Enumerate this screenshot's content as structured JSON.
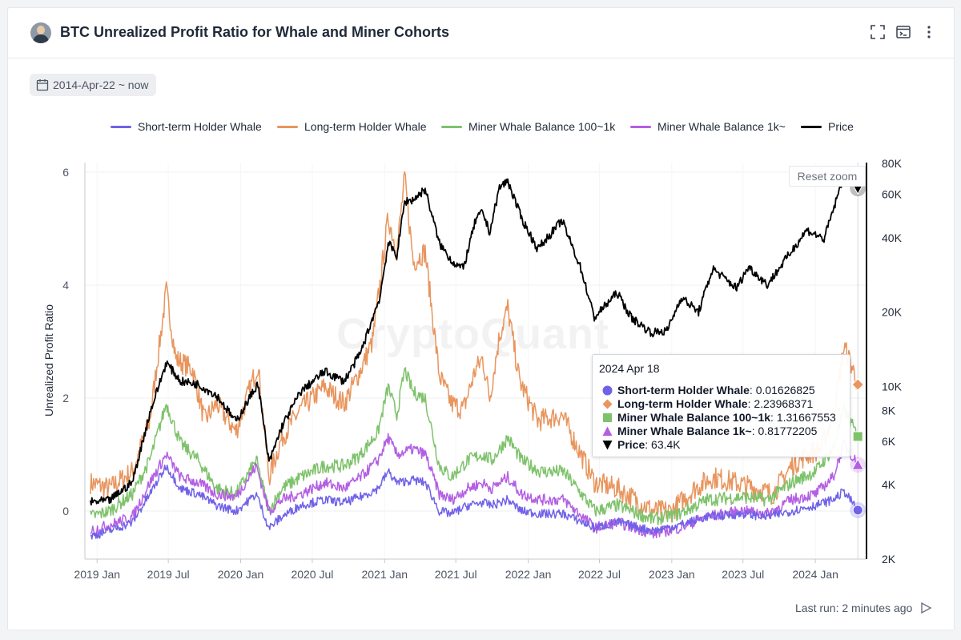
{
  "header": {
    "title": "BTC Unrealized Profit Ratio for Whale and Miner Cohorts",
    "icons": [
      "expand-icon",
      "terminal-icon",
      "more-vert-icon"
    ]
  },
  "date_range": "2014-Apr-22 ~ now",
  "reset_zoom_label": "Reset zoom",
  "watermark": "CryptoQuant",
  "footer": {
    "last_run": "Last run: 2 minutes ago"
  },
  "colors": {
    "sth": "#7062e8",
    "lth": "#e8955e",
    "mw100": "#7ec26b",
    "mw1k": "#b35fe3",
    "price": "#000000"
  },
  "legend": [
    {
      "key": "sth",
      "label": "Short-term Holder Whale"
    },
    {
      "key": "lth",
      "label": "Long-term Holder Whale"
    },
    {
      "key": "mw100",
      "label": "Miner Whale Balance 100~1k"
    },
    {
      "key": "mw1k",
      "label": "Miner Whale Balance 1k~"
    },
    {
      "key": "price",
      "label": "Price"
    }
  ],
  "tooltip": {
    "date": "2024 Apr 18",
    "rows": [
      {
        "label": "Short-term Holder Whale",
        "value": "0.01626825",
        "marker": "circle",
        "color": "#7062e8"
      },
      {
        "label": "Long-term Holder Whale",
        "value": "2.23968371",
        "marker": "diamond",
        "color": "#e8955e"
      },
      {
        "label": "Miner Whale Balance 100~1k",
        "value": "1.31667553",
        "marker": "square",
        "color": "#7ec26b"
      },
      {
        "label": "Miner Whale Balance 1k~",
        "value": "0.81772205",
        "marker": "triangle",
        "color": "#b35fe3"
      },
      {
        "label": "Price",
        "value": "63.4K",
        "marker": "triangle-down",
        "color": "#000000"
      }
    ]
  },
  "chart_data": {
    "type": "line",
    "title": "BTC Unrealized Profit Ratio for Whale and Miner Cohorts",
    "ylabel": "Unrealized Profit Ratio",
    "y_ticks": [
      0,
      2,
      4,
      6
    ],
    "y2_tick_labels": [
      "2K",
      "4K",
      "6K",
      "8K",
      "10K",
      "20K",
      "40K",
      "60K",
      "80K"
    ],
    "y2_tick_values": [
      2000,
      4000,
      6000,
      8000,
      10000,
      20000,
      40000,
      60000,
      80000
    ],
    "y2_scale": "log",
    "x_ticks": [
      "2019 Jan",
      "2019 Jul",
      "2020 Jan",
      "2020 Jul",
      "2021 Jan",
      "2021 Jul",
      "2022 Jan",
      "2022 Jul",
      "2023 Jan",
      "2023 Jul",
      "2024 Jan"
    ],
    "x_tick_dates": [
      "2019-01-01",
      "2019-07-01",
      "2020-01-01",
      "2020-07-01",
      "2021-01-01",
      "2021-07-01",
      "2022-01-01",
      "2022-07-01",
      "2023-01-01",
      "2023-07-01",
      "2024-01-01"
    ],
    "grid": true,
    "legend_position": "top",
    "series": [
      {
        "name": "Short-term Holder Whale",
        "axis": "left",
        "color": "#7062e8",
        "points": [
          [
            "2018-12-15",
            -0.45
          ],
          [
            "2019-02-01",
            -0.35
          ],
          [
            "2019-04-01",
            -0.2
          ],
          [
            "2019-05-15",
            0.3
          ],
          [
            "2019-06-26",
            0.8
          ],
          [
            "2019-08-01",
            0.4
          ],
          [
            "2019-09-15",
            0.3
          ],
          [
            "2019-11-01",
            0.1
          ],
          [
            "2019-12-20",
            0.0
          ],
          [
            "2020-02-10",
            0.3
          ],
          [
            "2020-03-13",
            -0.3
          ],
          [
            "2020-04-15",
            -0.1
          ],
          [
            "2020-06-01",
            0.1
          ],
          [
            "2020-08-01",
            0.2
          ],
          [
            "2020-09-20",
            0.15
          ],
          [
            "2020-11-01",
            0.25
          ],
          [
            "2020-12-15",
            0.4
          ],
          [
            "2021-01-10",
            0.7
          ],
          [
            "2021-02-01",
            0.5
          ],
          [
            "2021-03-15",
            0.55
          ],
          [
            "2021-04-15",
            0.5
          ],
          [
            "2021-05-20",
            0.0
          ],
          [
            "2021-06-20",
            -0.05
          ],
          [
            "2021-08-01",
            0.1
          ],
          [
            "2021-09-05",
            0.15
          ],
          [
            "2021-10-01",
            0.1
          ],
          [
            "2021-11-10",
            0.2
          ],
          [
            "2021-12-15",
            0.0
          ],
          [
            "2022-02-01",
            -0.05
          ],
          [
            "2022-04-01",
            -0.05
          ],
          [
            "2022-06-20",
            -0.3
          ],
          [
            "2022-08-15",
            -0.2
          ],
          [
            "2022-11-15",
            -0.35
          ],
          [
            "2023-01-20",
            -0.25
          ],
          [
            "2023-04-01",
            -0.1
          ],
          [
            "2023-07-01",
            -0.05
          ],
          [
            "2023-09-01",
            -0.1
          ],
          [
            "2023-11-01",
            0.0
          ],
          [
            "2024-01-01",
            0.1
          ],
          [
            "2024-02-15",
            0.2
          ],
          [
            "2024-03-14",
            0.35
          ],
          [
            "2024-04-18",
            0.016
          ]
        ]
      },
      {
        "name": "Long-term Holder Whale",
        "axis": "left",
        "color": "#e8955e",
        "points": [
          [
            "2018-12-15",
            0.5
          ],
          [
            "2019-02-01",
            0.4
          ],
          [
            "2019-04-01",
            0.7
          ],
          [
            "2019-05-15",
            1.6
          ],
          [
            "2019-06-26",
            3.9
          ],
          [
            "2019-07-20",
            2.7
          ],
          [
            "2019-09-01",
            2.5
          ],
          [
            "2019-10-01",
            1.6
          ],
          [
            "2019-11-01",
            1.9
          ],
          [
            "2019-12-20",
            1.4
          ],
          [
            "2020-02-14",
            2.6
          ],
          [
            "2020-03-13",
            0.6
          ],
          [
            "2020-04-15",
            1.3
          ],
          [
            "2020-06-01",
            1.8
          ],
          [
            "2020-08-01",
            2.2
          ],
          [
            "2020-09-20",
            1.9
          ],
          [
            "2020-11-01",
            2.5
          ],
          [
            "2020-12-01",
            3.0
          ],
          [
            "2020-12-20",
            4.0
          ],
          [
            "2021-01-10",
            5.2
          ],
          [
            "2021-02-01",
            4.6
          ],
          [
            "2021-02-21",
            5.9
          ],
          [
            "2021-03-15",
            4.4
          ],
          [
            "2021-04-14",
            4.6
          ],
          [
            "2021-05-20",
            2.4
          ],
          [
            "2021-06-20",
            1.9
          ],
          [
            "2021-07-20",
            1.8
          ],
          [
            "2021-08-20",
            2.5
          ],
          [
            "2021-09-07",
            2.7
          ],
          [
            "2021-09-25",
            2.0
          ],
          [
            "2021-10-20",
            3.1
          ],
          [
            "2021-11-10",
            3.6
          ],
          [
            "2021-12-10",
            2.3
          ],
          [
            "2022-01-25",
            1.6
          ],
          [
            "2022-03-28",
            1.7
          ],
          [
            "2022-05-15",
            1.0
          ],
          [
            "2022-06-20",
            0.5
          ],
          [
            "2022-08-15",
            0.4
          ],
          [
            "2022-11-15",
            0.0
          ],
          [
            "2023-01-01",
            0.0
          ],
          [
            "2023-03-01",
            0.4
          ],
          [
            "2023-04-15",
            0.6
          ],
          [
            "2023-06-15",
            0.5
          ],
          [
            "2023-08-01",
            0.4
          ],
          [
            "2023-09-15",
            0.3
          ],
          [
            "2023-11-01",
            0.8
          ],
          [
            "2023-12-10",
            1.0
          ],
          [
            "2024-01-15",
            1.1
          ],
          [
            "2024-02-15",
            1.7
          ],
          [
            "2024-03-14",
            2.9
          ],
          [
            "2024-04-01",
            2.6
          ],
          [
            "2024-04-18",
            2.24
          ]
        ]
      },
      {
        "name": "Miner Whale Balance 100~1k",
        "axis": "left",
        "color": "#7ec26b",
        "points": [
          [
            "2018-12-15",
            -0.1
          ],
          [
            "2019-02-01",
            0.0
          ],
          [
            "2019-04-01",
            0.3
          ],
          [
            "2019-05-15",
            0.9
          ],
          [
            "2019-06-26",
            1.9
          ],
          [
            "2019-08-01",
            1.2
          ],
          [
            "2019-09-15",
            0.9
          ],
          [
            "2019-11-01",
            0.4
          ],
          [
            "2019-12-20",
            0.3
          ],
          [
            "2020-02-10",
            0.9
          ],
          [
            "2020-03-13",
            0.0
          ],
          [
            "2020-04-15",
            0.4
          ],
          [
            "2020-06-01",
            0.6
          ],
          [
            "2020-08-01",
            0.8
          ],
          [
            "2020-09-20",
            0.8
          ],
          [
            "2020-11-01",
            1.0
          ],
          [
            "2020-12-15",
            1.4
          ],
          [
            "2021-01-10",
            2.2
          ],
          [
            "2021-02-01",
            1.7
          ],
          [
            "2021-02-21",
            2.5
          ],
          [
            "2021-03-15",
            2.1
          ],
          [
            "2021-04-14",
            2.0
          ],
          [
            "2021-05-20",
            0.8
          ],
          [
            "2021-06-20",
            0.6
          ],
          [
            "2021-08-01",
            0.9
          ],
          [
            "2021-09-05",
            1.0
          ],
          [
            "2021-10-01",
            0.9
          ],
          [
            "2021-11-10",
            1.3
          ],
          [
            "2021-12-15",
            0.9
          ],
          [
            "2022-02-01",
            0.7
          ],
          [
            "2022-04-01",
            0.7
          ],
          [
            "2022-06-20",
            0.0
          ],
          [
            "2022-08-15",
            0.1
          ],
          [
            "2022-11-15",
            -0.15
          ],
          [
            "2023-01-20",
            -0.05
          ],
          [
            "2023-04-01",
            0.2
          ],
          [
            "2023-07-01",
            0.25
          ],
          [
            "2023-09-01",
            0.2
          ],
          [
            "2023-11-01",
            0.5
          ],
          [
            "2024-01-01",
            0.7
          ],
          [
            "2024-02-15",
            1.1
          ],
          [
            "2024-03-14",
            1.8
          ],
          [
            "2024-04-18",
            1.32
          ]
        ]
      },
      {
        "name": "Miner Whale Balance 1k~",
        "axis": "left",
        "color": "#b35fe3",
        "points": [
          [
            "2018-12-15",
            -0.35
          ],
          [
            "2019-02-01",
            -0.25
          ],
          [
            "2019-04-01",
            -0.1
          ],
          [
            "2019-05-15",
            0.5
          ],
          [
            "2019-06-26",
            1.0
          ],
          [
            "2019-08-01",
            0.6
          ],
          [
            "2019-09-15",
            0.5
          ],
          [
            "2019-11-01",
            0.3
          ],
          [
            "2019-12-20",
            0.25
          ],
          [
            "2020-02-10",
            0.8
          ],
          [
            "2020-03-13",
            0.0
          ],
          [
            "2020-04-15",
            0.2
          ],
          [
            "2020-06-01",
            0.3
          ],
          [
            "2020-08-01",
            0.5
          ],
          [
            "2020-09-20",
            0.4
          ],
          [
            "2020-11-01",
            0.6
          ],
          [
            "2020-12-15",
            0.9
          ],
          [
            "2021-01-10",
            1.3
          ],
          [
            "2021-02-01",
            1.0
          ],
          [
            "2021-03-15",
            1.1
          ],
          [
            "2021-04-15",
            1.0
          ],
          [
            "2021-05-20",
            0.3
          ],
          [
            "2021-06-20",
            0.2
          ],
          [
            "2021-08-01",
            0.4
          ],
          [
            "2021-09-05",
            0.5
          ],
          [
            "2021-10-01",
            0.4
          ],
          [
            "2021-11-10",
            0.6
          ],
          [
            "2021-12-15",
            0.3
          ],
          [
            "2022-02-01",
            0.2
          ],
          [
            "2022-04-01",
            0.2
          ],
          [
            "2022-06-20",
            -0.3
          ],
          [
            "2022-08-15",
            -0.2
          ],
          [
            "2022-11-15",
            -0.4
          ],
          [
            "2023-01-20",
            -0.3
          ],
          [
            "2023-04-01",
            -0.1
          ],
          [
            "2023-07-01",
            0.0
          ],
          [
            "2023-09-01",
            -0.05
          ],
          [
            "2023-11-01",
            0.2
          ],
          [
            "2024-01-01",
            0.3
          ],
          [
            "2024-02-15",
            0.6
          ],
          [
            "2024-03-14",
            1.2
          ],
          [
            "2024-04-18",
            0.82
          ]
        ]
      },
      {
        "name": "Price",
        "axis": "right",
        "color": "#000000",
        "points": [
          [
            "2018-12-15",
            3400
          ],
          [
            "2019-02-01",
            3450
          ],
          [
            "2019-04-01",
            4100
          ],
          [
            "2019-05-15",
            7800
          ],
          [
            "2019-06-26",
            12500
          ],
          [
            "2019-08-01",
            10500
          ],
          [
            "2019-09-15",
            10200
          ],
          [
            "2019-11-01",
            9200
          ],
          [
            "2019-12-20",
            7200
          ],
          [
            "2020-02-14",
            10300
          ],
          [
            "2020-03-13",
            4900
          ],
          [
            "2020-04-15",
            6900
          ],
          [
            "2020-06-01",
            9500
          ],
          [
            "2020-08-01",
            11500
          ],
          [
            "2020-09-20",
            10500
          ],
          [
            "2020-11-01",
            13700
          ],
          [
            "2020-12-20",
            23000
          ],
          [
            "2021-01-10",
            38000
          ],
          [
            "2021-02-01",
            34000
          ],
          [
            "2021-02-21",
            56000
          ],
          [
            "2021-03-15",
            57000
          ],
          [
            "2021-04-14",
            63000
          ],
          [
            "2021-05-20",
            38000
          ],
          [
            "2021-06-22",
            32000
          ],
          [
            "2021-07-20",
            30000
          ],
          [
            "2021-08-20",
            47000
          ],
          [
            "2021-09-07",
            51000
          ],
          [
            "2021-09-25",
            42000
          ],
          [
            "2021-10-20",
            64000
          ],
          [
            "2021-11-10",
            68000
          ],
          [
            "2021-12-15",
            48000
          ],
          [
            "2022-01-25",
            36000
          ],
          [
            "2022-03-28",
            47000
          ],
          [
            "2022-05-15",
            30000
          ],
          [
            "2022-06-18",
            19000
          ],
          [
            "2022-08-15",
            24000
          ],
          [
            "2022-09-20",
            19000
          ],
          [
            "2022-11-10",
            16500
          ],
          [
            "2022-12-20",
            16800
          ],
          [
            "2023-01-25",
            23000
          ],
          [
            "2023-03-10",
            20000
          ],
          [
            "2023-04-15",
            30000
          ],
          [
            "2023-06-15",
            25000
          ],
          [
            "2023-07-15",
            30500
          ],
          [
            "2023-09-01",
            25800
          ],
          [
            "2023-10-25",
            34000
          ],
          [
            "2023-12-10",
            43000
          ],
          [
            "2024-01-23",
            39500
          ],
          [
            "2024-02-28",
            60000
          ],
          [
            "2024-03-14",
            73000
          ],
          [
            "2024-04-18",
            63400
          ]
        ]
      }
    ]
  }
}
